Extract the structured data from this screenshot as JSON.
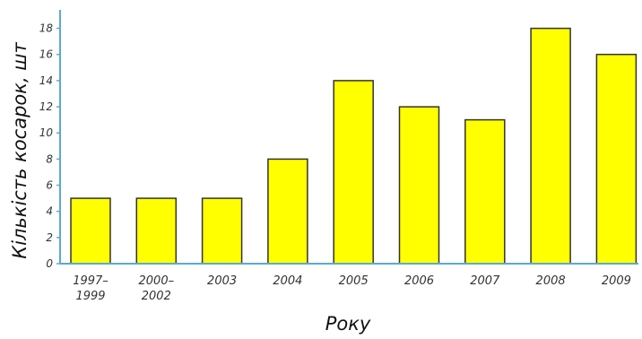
{
  "chart_data": {
    "type": "bar",
    "categories": [
      [
        "1997–",
        "1999"
      ],
      [
        "2000–",
        "2002"
      ],
      [
        "2003"
      ],
      [
        "2004"
      ],
      [
        "2005"
      ],
      [
        "2006"
      ],
      [
        "2007"
      ],
      [
        "2008"
      ],
      [
        "2009"
      ]
    ],
    "values": [
      5,
      5,
      5,
      8,
      14,
      12,
      11,
      18,
      16
    ],
    "yticks": [
      0,
      2,
      4,
      6,
      8,
      10,
      12,
      14,
      16,
      18
    ],
    "ylim": [
      0,
      19
    ],
    "xlabel": "Року",
    "ylabel": "Кількість косарок, шт",
    "grid": false,
    "colors": {
      "bar_fill": "#ffff00",
      "bar_stroke": "#333333",
      "axis": "#5aa9d6"
    }
  }
}
